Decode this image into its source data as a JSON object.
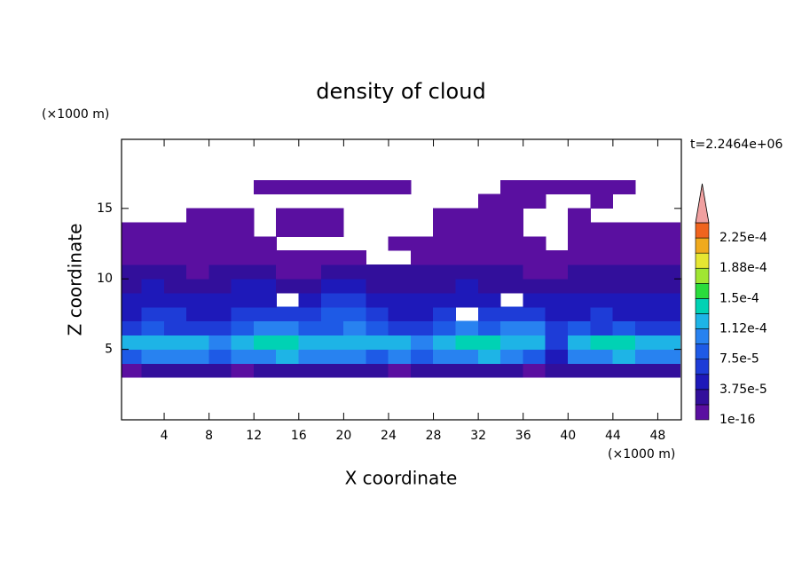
{
  "chart_data": {
    "type": "contour",
    "title": "density of cloud",
    "time_label": "t=2.2464e+06",
    "x_label": "X coordinate",
    "y_label": "Z coordinate",
    "x_unit": "(×1000 m)",
    "y_unit": "(×1000 m)",
    "xlim": [
      0.2,
      50.1
    ],
    "ylim": [
      0,
      19.9
    ],
    "xticks": [
      4,
      8,
      12,
      16,
      20,
      24,
      28,
      32,
      36,
      40,
      44,
      48
    ],
    "yticks": [
      5,
      10,
      15
    ],
    "levels": [
      1e-16,
      1.875e-05,
      3.75e-05,
      5.625e-05,
      7.5e-05,
      9.375e-05,
      0.0001125,
      0.00013125,
      0.00015,
      0.00016875,
      0.0001875,
      0.00020625,
      0.000225,
      0.00024375
    ],
    "level_labels": [
      "1e-16",
      null,
      "3.75e-5",
      null,
      "7.5e-5",
      null,
      "1.12e-4",
      null,
      "1.5e-4",
      null,
      "1.88e-4",
      null,
      "2.25e-4",
      null
    ],
    "colors": [
      "#5a0fa0",
      "#320f9b",
      "#1e19b9",
      "#1e3cd7",
      "#1e5ae6",
      "#2882f0",
      "#1eb4e6",
      "#00d2b4",
      "#2adc3c",
      "#a0e632",
      "#e6e632",
      "#f0aa1e",
      "#f0641e",
      "#f03232",
      "#f0a0a0"
    ],
    "x": [
      1,
      3,
      5,
      7,
      9,
      11,
      13,
      15,
      17,
      19,
      21,
      23,
      25,
      27,
      29,
      31,
      33,
      35,
      37,
      39,
      41,
      43,
      45,
      47,
      49
    ],
    "z": [
      3.5,
      4.5,
      5.5,
      6.5,
      7.5,
      8.5,
      9.5,
      10.5,
      11.5,
      12.5,
      13.5,
      14.5,
      15.5,
      16.5
    ],
    "values": [
      [
        1e-05,
        3e-05,
        3e-05,
        3e-05,
        3e-05,
        1e-05,
        3e-05,
        3e-05,
        3e-05,
        3e-05,
        3e-05,
        3e-05,
        1e-05,
        3e-05,
        3e-05,
        3e-05,
        3e-05,
        3e-05,
        1e-05,
        3e-05,
        3e-05,
        3e-05,
        3e-05,
        3e-05,
        3e-05
      ],
      [
        9e-05,
        0.000105,
        0.000105,
        0.000105,
        9e-05,
        0.000105,
        0.000105,
        0.00012,
        0.000105,
        0.000105,
        0.000105,
        9e-05,
        0.000105,
        9e-05,
        0.000105,
        0.000105,
        0.00012,
        0.000105,
        9e-05,
        5e-05,
        0.000105,
        0.000105,
        0.00012,
        0.000105,
        0.000105
      ],
      [
        0.00012,
        0.00012,
        0.00012,
        0.00012,
        0.000105,
        0.00012,
        0.00014,
        0.00014,
        0.00012,
        0.00012,
        0.00012,
        0.00012,
        0.00012,
        0.000105,
        0.00012,
        0.00014,
        0.00014,
        0.00012,
        0.00012,
        7e-05,
        0.00012,
        0.00014,
        0.00014,
        0.00012,
        0.00012
      ],
      [
        7e-05,
        9e-05,
        7e-05,
        7e-05,
        7e-05,
        9e-05,
        0.000105,
        0.000105,
        9e-05,
        9e-05,
        0.000105,
        9e-05,
        7e-05,
        7e-05,
        9e-05,
        0.000105,
        9e-05,
        0.000105,
        0.000105,
        7e-05,
        9e-05,
        7e-05,
        9e-05,
        7e-05,
        7e-05
      ],
      [
        5e-05,
        7e-05,
        7e-05,
        5e-05,
        5e-05,
        7e-05,
        7e-05,
        7e-05,
        7e-05,
        9e-05,
        9e-05,
        7e-05,
        5e-05,
        5e-05,
        7e-05,
        null,
        7e-05,
        7e-05,
        7e-05,
        5e-05,
        5e-05,
        7e-05,
        5e-05,
        5e-05,
        5e-05
      ],
      [
        5e-05,
        5e-05,
        5e-05,
        5e-05,
        5e-05,
        5e-05,
        5e-05,
        null,
        5e-05,
        7e-05,
        7e-05,
        5e-05,
        5e-05,
        5e-05,
        5e-05,
        5e-05,
        5e-05,
        null,
        5e-05,
        5e-05,
        5e-05,
        5e-05,
        5e-05,
        5e-05,
        5e-05
      ],
      [
        3e-05,
        5e-05,
        3e-05,
        3e-05,
        3e-05,
        5e-05,
        5e-05,
        3e-05,
        3e-05,
        5e-05,
        5e-05,
        3e-05,
        3e-05,
        3e-05,
        3e-05,
        5e-05,
        3e-05,
        3e-05,
        3e-05,
        3e-05,
        3e-05,
        3e-05,
        3e-05,
        3e-05,
        3e-05
      ],
      [
        3e-05,
        3e-05,
        3e-05,
        1e-05,
        3e-05,
        3e-05,
        3e-05,
        1e-05,
        1e-05,
        3e-05,
        3e-05,
        3e-05,
        3e-05,
        3e-05,
        3e-05,
        3e-05,
        3e-05,
        3e-05,
        1e-05,
        1e-05,
        3e-05,
        3e-05,
        3e-05,
        3e-05,
        3e-05
      ],
      [
        1e-05,
        1e-05,
        1e-05,
        1e-05,
        1e-05,
        1e-05,
        1e-05,
        1e-05,
        1e-05,
        1e-05,
        1e-05,
        null,
        null,
        1e-05,
        1e-05,
        1e-05,
        1e-05,
        1e-05,
        1e-05,
        1e-05,
        1e-05,
        1e-05,
        1e-05,
        1e-05,
        1e-05
      ],
      [
        1e-05,
        1e-05,
        1e-05,
        1e-05,
        1e-05,
        1e-05,
        1e-05,
        null,
        null,
        null,
        null,
        null,
        1e-05,
        1e-05,
        1e-05,
        1e-05,
        1e-05,
        1e-05,
        1e-05,
        null,
        1e-05,
        1e-05,
        1e-05,
        1e-05,
        1e-05
      ],
      [
        1e-05,
        1e-05,
        1e-05,
        1e-05,
        1e-05,
        1e-05,
        null,
        1e-05,
        1e-05,
        1e-05,
        null,
        null,
        null,
        null,
        1e-05,
        1e-05,
        1e-05,
        1e-05,
        null,
        null,
        1e-05,
        1e-05,
        1e-05,
        1e-05,
        1e-05
      ],
      [
        null,
        null,
        null,
        1e-05,
        1e-05,
        1e-05,
        null,
        1e-05,
        1e-05,
        1e-05,
        null,
        null,
        null,
        null,
        1e-05,
        1e-05,
        1e-05,
        1e-05,
        null,
        null,
        1e-05,
        null,
        null,
        null,
        null
      ],
      [
        null,
        null,
        null,
        null,
        null,
        null,
        null,
        null,
        null,
        null,
        null,
        null,
        null,
        null,
        null,
        null,
        1e-05,
        1e-05,
        1e-05,
        null,
        null,
        1e-05,
        null,
        null,
        null
      ],
      [
        null,
        null,
        null,
        null,
        null,
        null,
        1e-05,
        1e-05,
        1e-05,
        1e-05,
        1e-05,
        1e-05,
        1e-05,
        null,
        null,
        null,
        null,
        1e-05,
        1e-05,
        1e-05,
        1e-05,
        1e-05,
        1e-05,
        null,
        null
      ]
    ]
  }
}
